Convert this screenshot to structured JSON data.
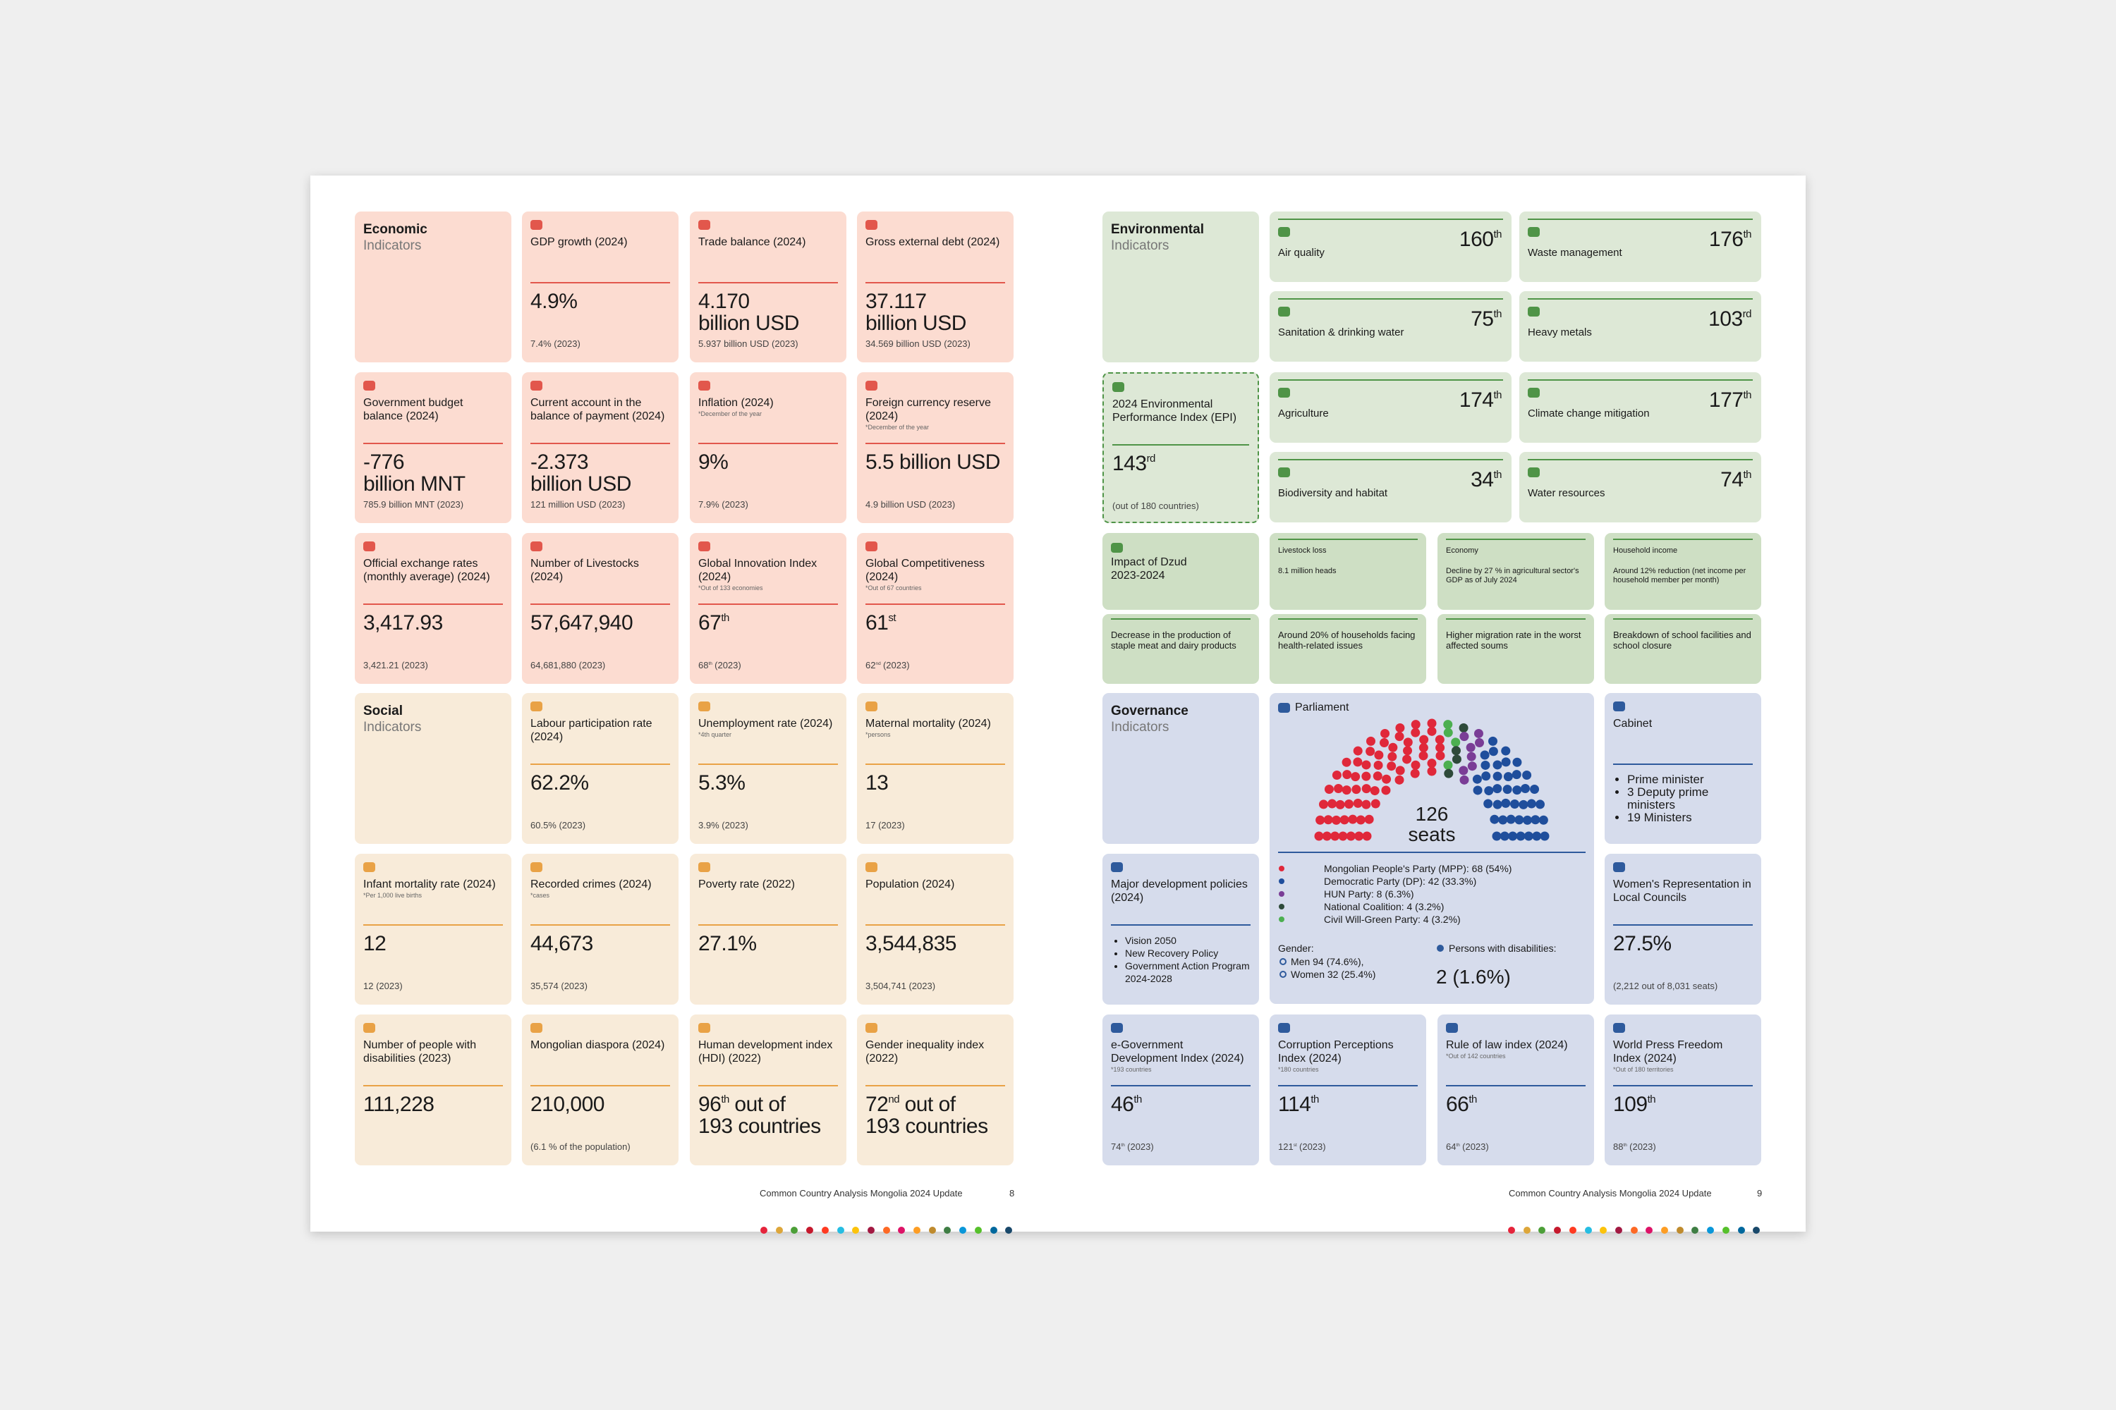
{
  "left_page": {
    "economic": {
      "title": "Economic",
      "subtitle": "Indicators",
      "cards": [
        {
          "label": "GDP growth (2024)",
          "value": "4.9%",
          "prev": "7.4% (2023)"
        },
        {
          "label": "Trade balance (2024)",
          "value": "4.170",
          "value_line2": "billion USD",
          "prev": "5.937 billion USD (2023)"
        },
        {
          "label": "Gross external debt (2024)",
          "value": "37.117",
          "value_line2": "billion USD",
          "prev": "34.569 billion USD (2023)"
        },
        {
          "label": "Government budget balance (2024)",
          "value": "-776",
          "value_line2": "billion MNT",
          "prev": "785.9 billion MNT (2023)"
        },
        {
          "label": "Current account in the balance of payment (2024)",
          "value": "-2.373",
          "value_line2": "billion USD",
          "prev": "121 million USD (2023)"
        },
        {
          "label": "Inflation (2024)",
          "note": "*December of the year",
          "value": "9%",
          "prev": "7.9% (2023)"
        },
        {
          "label": "Foreign currency reserve (2024)",
          "note": "*December of the year",
          "value": "5.5 billion USD",
          "prev": "4.9 billion USD (2023)"
        },
        {
          "label": "Official exchange rates (monthly average) (2024)",
          "value": "3,417.93",
          "prev": "3,421.21 (2023)"
        },
        {
          "label": "Number of Livestocks (2024)",
          "value": "57,647,940",
          "prev": "64,681,880 (2023)"
        },
        {
          "label": "Global Innovation Index (2024)",
          "note": "*Out of 133 economies",
          "value": "67",
          "value_sup": "th",
          "prev": "68",
          "prev_sup": "th",
          "prev_rest": "(2023)"
        },
        {
          "label": "Global Competitiveness (2024)",
          "note": "*Out of 67 countries",
          "value": "61",
          "value_sup": "st",
          "prev": "62",
          "prev_sup": "nd",
          "prev_rest": "(2023)"
        }
      ]
    },
    "social": {
      "title": "Social",
      "subtitle": "Indicators",
      "cards": [
        {
          "label": "Labour participation rate (2024)",
          "value": "62.2%",
          "prev": "60.5% (2023)"
        },
        {
          "label": "Unemployment rate (2024)",
          "note": "*4th quarter",
          "value": "5.3%",
          "prev": "3.9% (2023)"
        },
        {
          "label": "Maternal mortality (2024)",
          "note": "*persons",
          "value": "13",
          "prev": "17 (2023)"
        },
        {
          "label": "Infant mortality rate (2024)",
          "note": "*Per 1,000 live births",
          "value": "12",
          "prev": "12 (2023)"
        },
        {
          "label": "Recorded crimes (2024)",
          "note": "*cases",
          "value": "44,673",
          "prev": "35,574 (2023)"
        },
        {
          "label": "Poverty rate (2022)",
          "value": "27.1%"
        },
        {
          "label": "Population (2024)",
          "value": "3,544,835",
          "prev": "3,504,741 (2023)"
        },
        {
          "label": "Number of people with disabilities (2023)",
          "value": "111,228"
        },
        {
          "label": "Mongolian diaspora (2024)",
          "value": "210,000",
          "prev": "(6.1 % of the population)"
        },
        {
          "label": "Human development index (HDI) (2022)",
          "value": "96",
          "value_sup": "th",
          "value_rest": "out of",
          "value_line2": "193 countries"
        },
        {
          "label": "Gender inequality index (2022)",
          "value": "72",
          "value_sup": "nd",
          "value_rest": "out of",
          "value_line2": "193 countries"
        }
      ]
    },
    "footer": {
      "text": "Common Country Analysis Mongolia 2024 Update",
      "page": 8
    }
  },
  "right_page": {
    "environmental": {
      "title": "Environmental",
      "subtitle": "Indicators",
      "rankings": [
        {
          "label": "Air quality",
          "value": "160",
          "value_sup": "th"
        },
        {
          "label": "Waste management",
          "value": "176",
          "value_sup": "th"
        },
        {
          "label": "Sanitation & drinking water",
          "value": "75",
          "value_sup": "th"
        },
        {
          "label": "Heavy metals",
          "value": "103",
          "value_sup": "rd"
        },
        {
          "label": "Agriculture",
          "value": "174",
          "value_sup": "th"
        },
        {
          "label": "Climate change mitigation",
          "value": "177",
          "value_sup": "th"
        },
        {
          "label": "Biodiversity and habitat",
          "value": "34",
          "value_sup": "th"
        },
        {
          "label": "Water resources",
          "value": "74",
          "value_sup": "th"
        }
      ],
      "epi": {
        "label": "2024 Environmental Performance Index (EPI)",
        "value": "143",
        "value_sup": "rd",
        "prev": "(out of 180 countries)"
      }
    },
    "dzud": {
      "title": "Impact of Dzud 2023-2024",
      "impacts": [
        {
          "title": "Livestock loss",
          "text": "8.1 million heads"
        },
        {
          "title": "Economy",
          "text": "Decline by 27 % in agricultural sector's GDP as of July 2024"
        },
        {
          "title": "Household income",
          "text": "Around 12% reduction (net income per household member per month)"
        }
      ],
      "effects": [
        "Decrease in the production of staple meat and dairy products",
        "Around 20% of households facing health-related issues",
        "Higher migration rate in the worst affected soums",
        "Breakdown of school facilities and school closure"
      ]
    },
    "governance": {
      "title": "Governance",
      "subtitle": "Indicators",
      "parliament": {
        "title": "Parliament",
        "seats_total": 126,
        "seats_label": "seats",
        "parties": [
          {
            "label": "Mongolian People's Party (MPP): 68 (54%)",
            "seats": 68,
            "color": "#e0283a"
          },
          {
            "label": "Democratic Party (DP): 42 (33.3%)",
            "seats": 42,
            "color": "#1f4e9c"
          },
          {
            "label": "HUN Party: 8 (6.3%)",
            "seats": 8,
            "color": "#7a3d96"
          },
          {
            "label": "National Coalition: 4 (3.2%)",
            "seats": 4,
            "color": "#2e4a3a"
          },
          {
            "label": "Civil Will-Green Party: 4 (3.2%)",
            "seats": 4,
            "color": "#4caf50"
          }
        ],
        "gender_label": "Gender:",
        "men": "Men 94 (74.6%),",
        "women": "Women 32 (25.4%)",
        "disabilities_label": "Persons with disabilities:",
        "disabilities": "2 (1.6%)"
      },
      "cabinet": {
        "title": "Cabinet",
        "items": [
          "Prime minister",
          "3 Deputy prime ministers",
          "19 Ministers"
        ]
      },
      "policies": {
        "title": "Major development policies (2024)",
        "items": [
          "Vision 2050",
          "New Recovery Policy",
          "Government Action Program 2024-2028"
        ]
      },
      "women": {
        "label": "Women's Representation in Local Councils",
        "value": "27.5%",
        "prev": "(2,212 out of 8,031 seats)"
      },
      "cards": [
        {
          "label": "e-Government Development Index (2024)",
          "note": "*193 countries",
          "value": "46",
          "value_sup": "th",
          "prev": "74",
          "prev_sup": "th",
          "prev_rest": "(2023)"
        },
        {
          "label": "Corruption Perceptions Index (2024)",
          "note": "*180 countries",
          "value": "114",
          "value_sup": "th",
          "prev": "121",
          "prev_sup": "st",
          "prev_rest": "(2023)"
        },
        {
          "label": "Rule of law index (2024)",
          "note": "*Out of 142 countries",
          "value": "66",
          "value_sup": "th",
          "prev": "64",
          "prev_sup": "th",
          "prev_rest": "(2023)"
        },
        {
          "label": "World Press Freedom Index (2024)",
          "note": "*Out of 180 territories",
          "value": "109",
          "value_sup": "th",
          "prev": "88",
          "prev_sup": "th",
          "prev_rest": "(2023)"
        }
      ]
    },
    "footer": {
      "text": "Common Country Analysis Mongolia 2024 Update",
      "page": 9
    }
  }
}
